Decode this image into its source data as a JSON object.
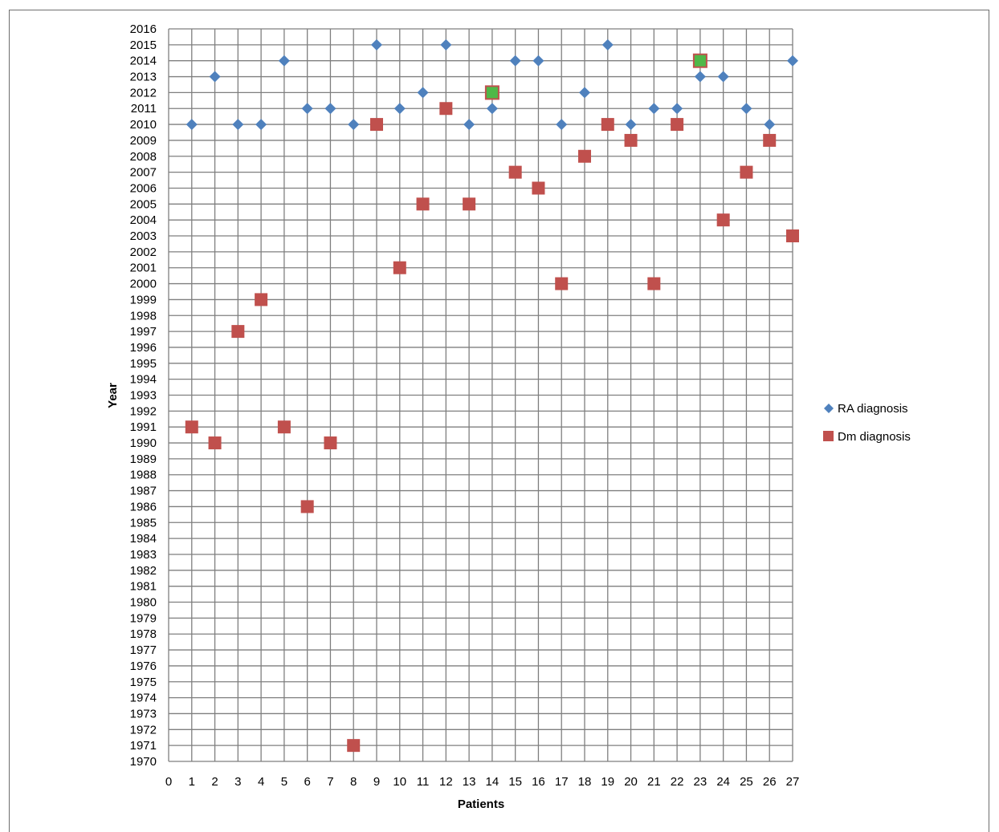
{
  "chart_data": {
    "type": "scatter",
    "title": "",
    "xlabel": "Patients",
    "ylabel": "Year",
    "xlim": [
      0,
      27
    ],
    "ylim": [
      1970,
      2016
    ],
    "x_ticks": [
      "0",
      "1",
      "2",
      "3",
      "4",
      "5",
      "6",
      "7",
      "8",
      "9",
      "10",
      "11",
      "12",
      "13",
      "14",
      "15",
      "16",
      "17",
      "18",
      "19",
      "20",
      "21",
      "22",
      "23",
      "24",
      "25",
      "26",
      "27"
    ],
    "y_ticks": [
      "1970",
      "1971",
      "1972",
      "1973",
      "1974",
      "1975",
      "1976",
      "1977",
      "1978",
      "1979",
      "1980",
      "1981",
      "1982",
      "1983",
      "1984",
      "1985",
      "1986",
      "1987",
      "1988",
      "1989",
      "1990",
      "1991",
      "1992",
      "1993",
      "1994",
      "1995",
      "1996",
      "1997",
      "1998",
      "1999",
      "2000",
      "2001",
      "2002",
      "2003",
      "2004",
      "2005",
      "2006",
      "2007",
      "2008",
      "2009",
      "2010",
      "2011",
      "2012",
      "2013",
      "2014",
      "2015",
      "2016"
    ],
    "grid": true,
    "legend_position": "right",
    "series": [
      {
        "name": "RA diagnosis",
        "marker": "diamond",
        "color": "#4f81bd",
        "x": [
          1,
          2,
          3,
          4,
          5,
          6,
          7,
          8,
          9,
          10,
          11,
          12,
          13,
          14,
          15,
          16,
          17,
          18,
          19,
          20,
          21,
          22,
          23,
          24,
          25,
          26,
          27
        ],
        "y": [
          2010,
          2013,
          2010,
          2010,
          2014,
          2011,
          2011,
          2010,
          2015,
          2011,
          2012,
          2015,
          2010,
          2011,
          2014,
          2014,
          2010,
          2012,
          2015,
          2010,
          2011,
          2011,
          2013,
          2013,
          2011,
          2010,
          2014
        ]
      },
      {
        "name": "Dm diagnosis",
        "marker": "square",
        "color": "#c0504d",
        "x": [
          1,
          2,
          3,
          4,
          5,
          6,
          7,
          8,
          9,
          10,
          11,
          12,
          13,
          14,
          15,
          16,
          17,
          18,
          19,
          20,
          21,
          22,
          23,
          24,
          25,
          26,
          27
        ],
        "y": [
          1991,
          1990,
          1997,
          1999,
          1991,
          1986,
          1990,
          1971,
          2010,
          2001,
          2005,
          2011,
          2005,
          2012,
          2007,
          2006,
          2000,
          2008,
          2010,
          2009,
          2000,
          2010,
          2014,
          2004,
          2007,
          2009,
          2003
        ],
        "highlight_color": "#4fb848",
        "highlighted_x": [
          14,
          23
        ]
      }
    ]
  }
}
